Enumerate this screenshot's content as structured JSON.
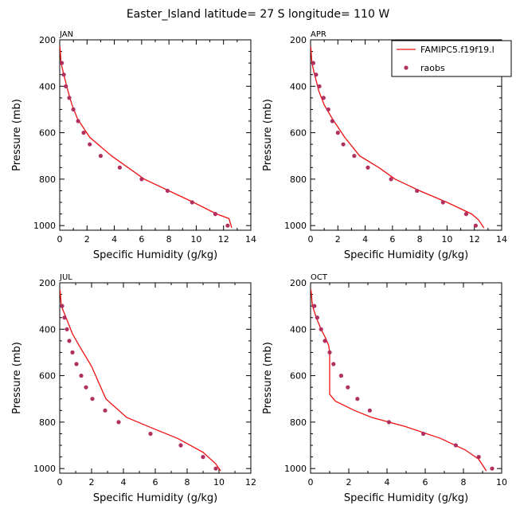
{
  "title": "Easter_Island  latitude= 27 S longitude= 110 W",
  "legend": {
    "model_label": "FAMIPC5.f19f19.l",
    "obs_label": "raobs"
  },
  "colors": {
    "model": "#ee1111",
    "obs": "#b03060",
    "axis": "#000000"
  },
  "chart_data": [
    {
      "type": "line",
      "title": "JAN",
      "xlabel": "Specific Humidity (g/kg)",
      "ylabel": "Pressure (mb)",
      "xlim": [
        0,
        14
      ],
      "ylim": [
        200,
        1020
      ],
      "xticks": [
        0,
        2,
        4,
        6,
        8,
        10,
        12,
        14
      ],
      "yticks": [
        200,
        400,
        600,
        800,
        1000
      ],
      "series": [
        {
          "name": "FAMIPC5.f19f19.l",
          "kind": "line",
          "points": [
            [
              0.02,
              230
            ],
            [
              0.1,
              300
            ],
            [
              0.3,
              350
            ],
            [
              0.6,
              420
            ],
            [
              0.9,
              480
            ],
            [
              1.3,
              540
            ],
            [
              2.2,
              620
            ],
            [
              3.8,
              700
            ],
            [
              5.0,
              750
            ],
            [
              6.2,
              800
            ],
            [
              8.0,
              850
            ],
            [
              9.8,
              900
            ],
            [
              11.5,
              950
            ],
            [
              12.4,
              970
            ],
            [
              12.6,
              1010
            ]
          ]
        },
        {
          "name": "raobs",
          "kind": "scatter",
          "points": [
            [
              0.15,
              300
            ],
            [
              0.3,
              350
            ],
            [
              0.45,
              400
            ],
            [
              0.7,
              450
            ],
            [
              1.0,
              500
            ],
            [
              1.35,
              550
            ],
            [
              1.75,
              600
            ],
            [
              2.2,
              650
            ],
            [
              3.0,
              700
            ],
            [
              4.4,
              750
            ],
            [
              6.0,
              800
            ],
            [
              7.9,
              850
            ],
            [
              9.7,
              900
            ],
            [
              11.4,
              950
            ],
            [
              12.3,
              1000
            ]
          ]
        }
      ]
    },
    {
      "type": "line",
      "title": "APR",
      "xlabel": "Specific Humidity (g/kg)",
      "ylabel": "Pressure (mb)",
      "xlim": [
        0,
        14
      ],
      "ylim": [
        200,
        1020
      ],
      "xticks": [
        0,
        2,
        4,
        6,
        8,
        10,
        12,
        14
      ],
      "yticks": [
        200,
        400,
        600,
        800,
        1000
      ],
      "series": [
        {
          "name": "FAMIPC5.f19f19.l",
          "kind": "line",
          "points": [
            [
              0.02,
              230
            ],
            [
              0.1,
              300
            ],
            [
              0.3,
              350
            ],
            [
              0.6,
              420
            ],
            [
              1.0,
              480
            ],
            [
              1.6,
              540
            ],
            [
              2.5,
              620
            ],
            [
              3.6,
              700
            ],
            [
              5.0,
              750
            ],
            [
              6.2,
              800
            ],
            [
              8.0,
              850
            ],
            [
              10.0,
              900
            ],
            [
              11.8,
              950
            ],
            [
              12.3,
              975
            ],
            [
              12.7,
              1010
            ]
          ]
        },
        {
          "name": "raobs",
          "kind": "scatter",
          "points": [
            [
              0.2,
              300
            ],
            [
              0.4,
              350
            ],
            [
              0.65,
              400
            ],
            [
              0.95,
              450
            ],
            [
              1.3,
              500
            ],
            [
              1.6,
              550
            ],
            [
              2.0,
              600
            ],
            [
              2.4,
              650
            ],
            [
              3.2,
              700
            ],
            [
              4.2,
              750
            ],
            [
              5.9,
              800
            ],
            [
              7.8,
              850
            ],
            [
              9.7,
              900
            ],
            [
              11.4,
              950
            ],
            [
              12.1,
              1000
            ]
          ]
        }
      ]
    },
    {
      "type": "line",
      "title": "JUL",
      "xlabel": "Specific Humidity (g/kg)",
      "ylabel": "Pressure (mb)",
      "xlim": [
        0,
        12
      ],
      "ylim": [
        200,
        1020
      ],
      "xticks": [
        0,
        2,
        4,
        6,
        8,
        10,
        12
      ],
      "yticks": [
        200,
        400,
        600,
        800,
        1000
      ],
      "series": [
        {
          "name": "FAMIPC5.f19f19.l",
          "kind": "line",
          "points": [
            [
              0.02,
              230
            ],
            [
              0.1,
              300
            ],
            [
              0.4,
              350
            ],
            [
              0.8,
              420
            ],
            [
              1.3,
              480
            ],
            [
              2.0,
              560
            ],
            [
              2.9,
              700
            ],
            [
              4.2,
              780
            ],
            [
              5.6,
              820
            ],
            [
              7.4,
              870
            ],
            [
              9.0,
              930
            ],
            [
              9.8,
              980
            ],
            [
              10.1,
              1010
            ]
          ]
        },
        {
          "name": "raobs",
          "kind": "scatter",
          "points": [
            [
              0.15,
              300
            ],
            [
              0.3,
              350
            ],
            [
              0.45,
              400
            ],
            [
              0.6,
              450
            ],
            [
              0.8,
              500
            ],
            [
              1.05,
              550
            ],
            [
              1.35,
              600
            ],
            [
              1.65,
              650
            ],
            [
              2.05,
              700
            ],
            [
              2.85,
              750
            ],
            [
              3.7,
              800
            ],
            [
              5.7,
              850
            ],
            [
              7.6,
              900
            ],
            [
              9.0,
              950
            ],
            [
              9.8,
              1000
            ]
          ]
        }
      ]
    },
    {
      "type": "line",
      "title": "OCT",
      "xlabel": "Specific Humidity (g/kg)",
      "ylabel": "Pressure (mb)",
      "xlim": [
        0,
        10
      ],
      "ylim": [
        200,
        1020
      ],
      "xticks": [
        0,
        2,
        4,
        6,
        8,
        10
      ],
      "yticks": [
        200,
        400,
        600,
        800,
        1000
      ],
      "series": [
        {
          "name": "FAMIPC5.f19f19.l",
          "kind": "line",
          "points": [
            [
              0.02,
              230
            ],
            [
              0.1,
              300
            ],
            [
              0.3,
              350
            ],
            [
              0.55,
              400
            ],
            [
              0.8,
              440
            ],
            [
              0.95,
              470
            ],
            [
              1.0,
              500
            ],
            [
              1.0,
              540
            ],
            [
              1.0,
              680
            ],
            [
              1.3,
              710
            ],
            [
              2.3,
              750
            ],
            [
              3.2,
              780
            ],
            [
              5.0,
              820
            ],
            [
              6.8,
              870
            ],
            [
              8.1,
              920
            ],
            [
              8.8,
              960
            ],
            [
              9.2,
              1010
            ]
          ]
        },
        {
          "name": "raobs",
          "kind": "scatter",
          "points": [
            [
              0.2,
              300
            ],
            [
              0.35,
              350
            ],
            [
              0.55,
              400
            ],
            [
              0.75,
              450
            ],
            [
              1.0,
              500
            ],
            [
              1.2,
              550
            ],
            [
              1.6,
              600
            ],
            [
              1.95,
              650
            ],
            [
              2.45,
              700
            ],
            [
              3.1,
              750
            ],
            [
              4.1,
              800
            ],
            [
              5.9,
              850
            ],
            [
              7.6,
              900
            ],
            [
              8.8,
              950
            ],
            [
              9.5,
              1000
            ]
          ]
        }
      ]
    }
  ]
}
